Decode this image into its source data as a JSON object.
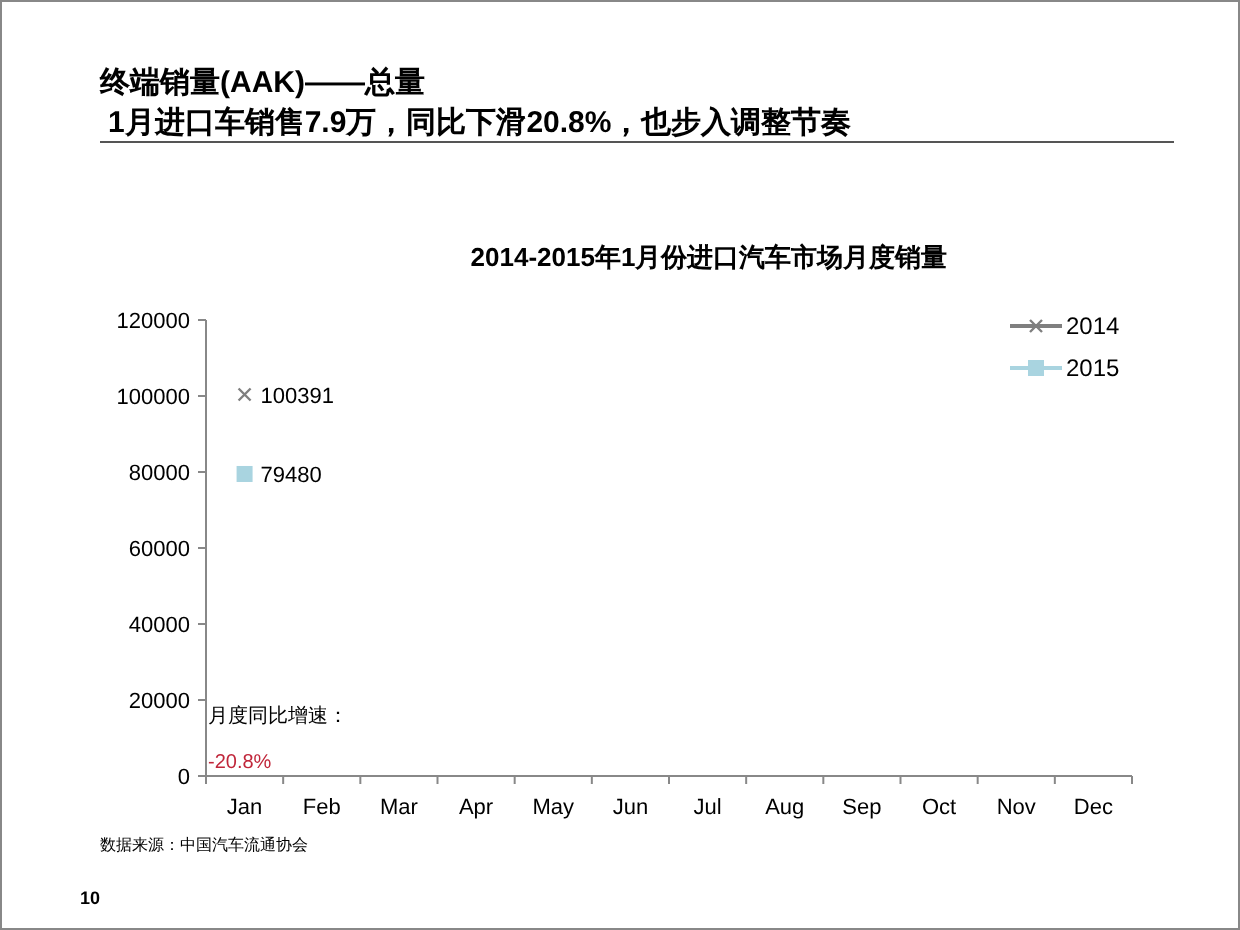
{
  "chart_data": {
    "type": "line",
    "title": "2014-2015年1月份进口汽车市场月度销量",
    "categories": [
      "Jan",
      "Feb",
      "Mar",
      "Apr",
      "May",
      "Jun",
      "Jul",
      "Aug",
      "Sep",
      "Oct",
      "Nov",
      "Dec"
    ],
    "series": [
      {
        "name": "2014",
        "color": "#7f7f7f",
        "marker": "cross",
        "values": [
          100391,
          null,
          null,
          null,
          null,
          null,
          null,
          null,
          null,
          null,
          null,
          null
        ]
      },
      {
        "name": "2015",
        "color": "#a9d4e0",
        "marker": "square",
        "values": [
          79480,
          null,
          null,
          null,
          null,
          null,
          null,
          null,
          null,
          null,
          null,
          null
        ]
      }
    ],
    "ylim": [
      0,
      120000
    ],
    "yticks": [
      0,
      20000,
      40000,
      60000,
      80000,
      100000,
      120000
    ],
    "data_labels": true,
    "legend": "top right",
    "grid": false,
    "annotations": [
      "终端销量(AAK)——总量",
      "1月进口车销售7.9万，同比下滑20.8%，也步入调整节奏",
      "月度同比增速：",
      "-20.8%",
      "数据来源：中国汽车流通协会",
      "10"
    ]
  }
}
